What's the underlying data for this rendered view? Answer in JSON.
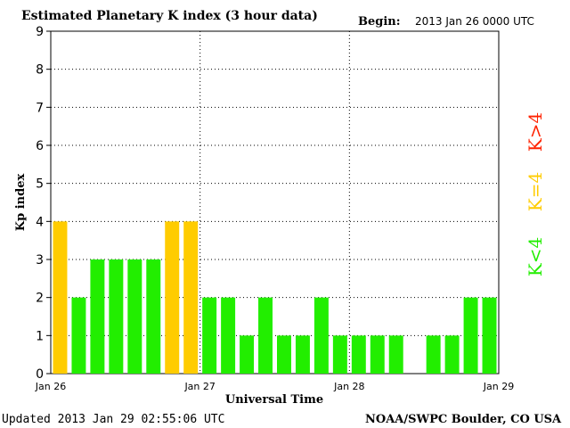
{
  "header": {
    "title": "Estimated Planetary K index (3 hour data)",
    "begin_label": "Begin:",
    "begin_value": "2013 Jan 26 0000 UTC"
  },
  "footer": {
    "updated": "Updated 2013 Jan 29 02:55:06 UTC",
    "credit": "NOAA/SWPC Boulder, CO USA"
  },
  "legend": {
    "high": {
      "label": "K>4",
      "color": "#ff2200"
    },
    "equal": {
      "label": "K=4",
      "color": "#ffcc00"
    },
    "low": {
      "label": "K<4",
      "color": "#22ee00"
    }
  },
  "chart_data": {
    "type": "bar",
    "title": "Estimated Planetary K index (3 hour data)",
    "xlabel": "Universal Time",
    "ylabel": "Kp index",
    "ylim": [
      0,
      9
    ],
    "yticks": [
      "0",
      "1",
      "2",
      "3",
      "4",
      "5",
      "6",
      "7",
      "8",
      "9"
    ],
    "xticks": [
      "Jan 26",
      "Jan 27",
      "Jan 28",
      "Jan 29"
    ],
    "bars_per_day": 8,
    "values": [
      4,
      2,
      3,
      3,
      3,
      3,
      4,
      4,
      2,
      2,
      1,
      2,
      1,
      1,
      2,
      1,
      1,
      1,
      1,
      null,
      1,
      1,
      2,
      2
    ],
    "colors": {
      "low": "#22ee00",
      "equal": "#ffcc00",
      "high": "#ff2200"
    },
    "grid": true
  }
}
